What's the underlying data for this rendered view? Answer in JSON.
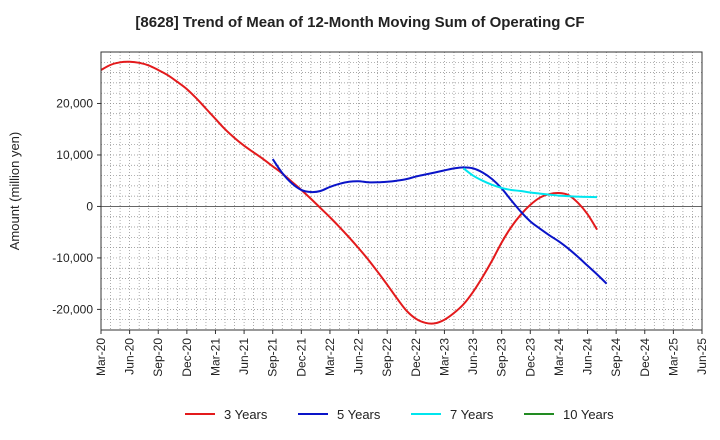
{
  "chart_data": {
    "type": "line",
    "title": "[8628]  Trend of Mean of 12-Month Moving Sum of Operating CF",
    "xlabel": "",
    "ylabel": "Amount (million yen)",
    "ylim": [
      -24000,
      30000
    ],
    "yticks": [
      -20000,
      -10000,
      0,
      10000,
      20000
    ],
    "ytick_labels": [
      "-20,000",
      "-10,000",
      "0",
      "10,000",
      "20,000"
    ],
    "x_tick_labels": [
      "Mar-20",
      "Jun-20",
      "Sep-20",
      "Dec-20",
      "Mar-21",
      "Jun-21",
      "Sep-21",
      "Dec-21",
      "Mar-22",
      "Jun-22",
      "Sep-22",
      "Dec-22",
      "Mar-23",
      "Jun-23",
      "Sep-23",
      "Dec-23",
      "Mar-24",
      "Jun-24",
      "Sep-24",
      "Dec-24",
      "Mar-25",
      "Jun-25"
    ],
    "grid": true,
    "legend_position": "bottom",
    "series": [
      {
        "name": "3 Years",
        "color": "#e31a1c",
        "x": [
          0,
          1,
          2,
          3,
          4,
          5,
          6,
          7,
          8,
          9,
          10,
          11,
          12,
          13,
          14,
          15,
          16,
          17,
          18,
          19,
          20,
          21,
          22,
          23,
          24,
          25,
          26,
          27,
          28,
          29,
          30,
          31,
          32,
          33,
          34,
          35,
          36,
          37,
          38,
          39,
          40,
          41,
          42,
          43,
          44,
          45,
          46,
          47,
          48,
          49,
          50,
          51,
          52,
          53,
          54,
          55,
          56,
          57,
          58,
          59,
          60,
          61,
          62,
          63
        ],
        "values": [
          26500,
          27500,
          28000,
          28100,
          27900,
          27400,
          26500,
          25500,
          24200,
          22800,
          21000,
          19000,
          17000,
          15000,
          13300,
          11800,
          10500,
          9200,
          7800,
          6400,
          4800,
          3200,
          1500,
          -300,
          -2100,
          -4000,
          -6000,
          -8100,
          -10300,
          -12700,
          -15200,
          -17800,
          -20200,
          -21800,
          -22600,
          -22700,
          -22000,
          -20700,
          -19000,
          -16600,
          -13700,
          -10500,
          -7000,
          -4000,
          -1600,
          300,
          1700,
          2400,
          2600,
          2200,
          700,
          -1500,
          -4500,
          null,
          null,
          null,
          null,
          null,
          null,
          null,
          null,
          null,
          null,
          null
        ]
      },
      {
        "name": "5 Years",
        "color": "#0a14c8",
        "x": [
          18,
          19,
          20,
          21,
          22,
          23,
          24,
          25,
          26,
          27,
          28,
          29,
          30,
          31,
          32,
          33,
          34,
          35,
          36,
          37,
          38,
          39,
          40,
          41,
          42,
          43,
          44,
          45,
          46,
          47,
          48,
          49,
          50,
          51,
          52,
          53,
          54,
          55,
          56,
          57,
          58,
          59,
          60,
          61,
          62,
          63
        ],
        "values": [
          9200,
          6500,
          4500,
          3200,
          2800,
          3000,
          3800,
          4400,
          4800,
          4900,
          4700,
          4700,
          4800,
          5000,
          5300,
          5800,
          6200,
          6600,
          7000,
          7400,
          7600,
          7400,
          6600,
          5300,
          3500,
          1200,
          -1000,
          -2900,
          -4300,
          -5600,
          -6800,
          -8200,
          -9800,
          -11500,
          -13200,
          -15000,
          null,
          null,
          null,
          null,
          null,
          null,
          null,
          null,
          null,
          null
        ]
      },
      {
        "name": "7 Years",
        "color": "#00e5ee",
        "x": [
          38,
          39,
          40,
          41,
          42,
          43,
          44,
          45,
          46,
          47,
          48,
          49,
          50,
          51,
          52,
          53,
          54,
          55,
          56,
          57,
          58,
          59,
          60,
          61,
          62,
          63
        ],
        "values": [
          7400,
          6000,
          5000,
          4200,
          3600,
          3200,
          3000,
          2700,
          2500,
          2300,
          2100,
          2000,
          1900,
          1850,
          1800,
          null,
          null,
          null,
          null,
          null,
          null,
          null,
          null,
          null,
          null,
          null
        ]
      },
      {
        "name": "10 Years",
        "color": "#228b22",
        "x": [],
        "values": []
      }
    ]
  }
}
